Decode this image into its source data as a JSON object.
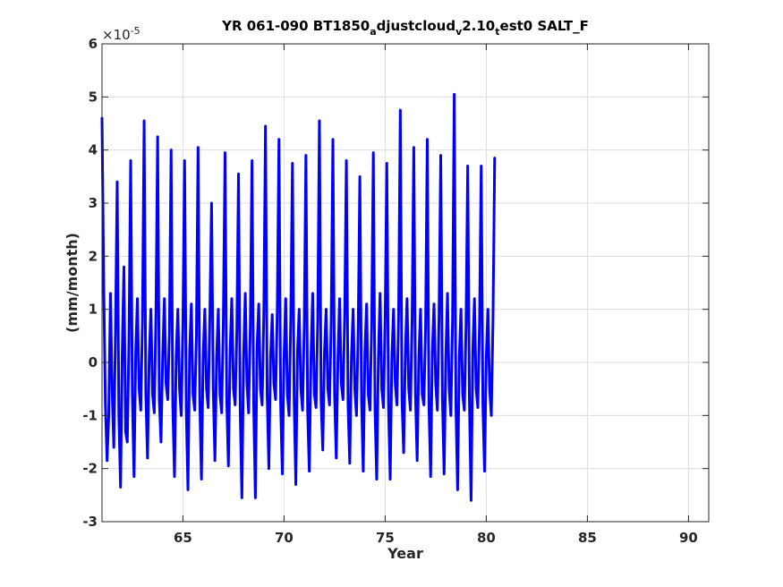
{
  "chart_data": {
    "type": "line",
    "title_parts": {
      "p1": "YR 061-090 BT1850",
      "s1": "a",
      "p2": "djustcloud",
      "s2": "v",
      "p3": "2.10",
      "s3": "t",
      "p4": "est0 SALT_F"
    },
    "xlabel": "Year",
    "ylabel": "(mm/month)",
    "exponent": {
      "base": "×10",
      "power": "-5"
    },
    "xlim": [
      61,
      91
    ],
    "ylim": [
      -3,
      6
    ],
    "xticks": [
      65,
      70,
      75,
      80,
      85,
      90
    ],
    "yticks": [
      -3,
      -2,
      -1,
      0,
      1,
      2,
      3,
      4,
      5,
      6
    ],
    "grid": true,
    "line_color": "#0000ff",
    "series": [
      {
        "x_start": 61.0,
        "x_step": 0.08333,
        "values": [
          4.6,
          1.5,
          -0.8,
          -1.85,
          -1.0,
          1.3,
          -0.5,
          -1.6,
          0.6,
          3.4,
          -1.0,
          -2.35,
          0.2,
          1.8,
          -1.3,
          -1.5,
          0.4,
          3.8,
          -0.6,
          -2.15,
          0.2,
          1.2,
          -0.5,
          -0.9,
          0.8,
          4.55,
          -0.6,
          -1.8,
          0.1,
          1.0,
          -0.6,
          -0.95,
          0.9,
          4.25,
          -0.7,
          -1.5,
          0.1,
          1.2,
          -0.4,
          -0.7,
          0.6,
          4.0,
          -0.8,
          -2.15,
          0.1,
          1.0,
          -0.5,
          -1.0,
          0.7,
          3.8,
          -0.9,
          -2.4,
          0.2,
          1.1,
          -0.6,
          -0.9,
          0.5,
          4.05,
          -0.7,
          -2.2,
          0.1,
          1.0,
          -0.5,
          -0.85,
          0.9,
          3.0,
          -0.5,
          -1.85,
          0.1,
          1.0,
          -0.6,
          -0.95,
          0.8,
          3.95,
          -0.7,
          -1.95,
          0.2,
          1.2,
          -0.5,
          -0.8,
          0.6,
          3.55,
          -0.9,
          -2.55,
          0.1,
          1.3,
          -0.4,
          -0.95,
          0.7,
          3.8,
          -0.8,
          -2.55,
          0.3,
          1.1,
          -0.5,
          -0.8,
          0.9,
          4.45,
          -0.6,
          -2.0,
          0.1,
          0.9,
          -0.4,
          -0.7,
          1.0,
          4.2,
          -0.8,
          -2.1,
          0.1,
          1.2,
          -0.6,
          -1.0,
          0.8,
          3.75,
          -0.7,
          -2.3,
          0.2,
          1.0,
          -0.5,
          -0.9,
          0.7,
          3.9,
          -0.9,
          -2.05,
          0.1,
          1.3,
          -0.6,
          -0.85,
          0.8,
          4.55,
          -0.7,
          -1.65,
          0.2,
          1.0,
          -0.5,
          -0.8,
          0.8,
          4.2,
          -0.6,
          -1.8,
          0.1,
          1.2,
          -0.4,
          -0.7,
          0.9,
          3.8,
          -0.8,
          -1.9,
          0.1,
          1.0,
          -0.5,
          -1.0,
          0.6,
          3.5,
          -0.7,
          -2.05,
          0.2,
          1.1,
          -0.6,
          -0.9,
          0.7,
          3.95,
          -0.9,
          -2.2,
          0.1,
          1.3,
          -0.5,
          -0.85,
          0.8,
          3.75,
          -0.8,
          -2.2,
          0.1,
          1.0,
          -0.4,
          -0.8,
          0.9,
          4.75,
          -0.7,
          -1.7,
          0.2,
          1.2,
          -0.5,
          -0.9,
          0.8,
          4.05,
          -0.6,
          -1.85,
          0.1,
          1.0,
          -0.6,
          -0.8,
          0.7,
          4.2,
          -0.8,
          -2.15,
          0.2,
          1.1,
          -0.4,
          -0.9,
          0.9,
          3.9,
          -0.7,
          -2.1,
          0.1,
          1.3,
          -0.5,
          -1.0,
          0.8,
          5.05,
          -0.8,
          -2.4,
          0.1,
          1.0,
          -0.6,
          -0.9,
          0.7,
          3.7,
          -0.7,
          -2.6,
          0.2,
          1.2,
          -0.5,
          -0.85,
          0.7,
          3.7,
          -0.8,
          -2.05,
          0.1,
          1.0,
          -0.5,
          -1.0,
          0.8,
          3.85
        ]
      }
    ]
  }
}
